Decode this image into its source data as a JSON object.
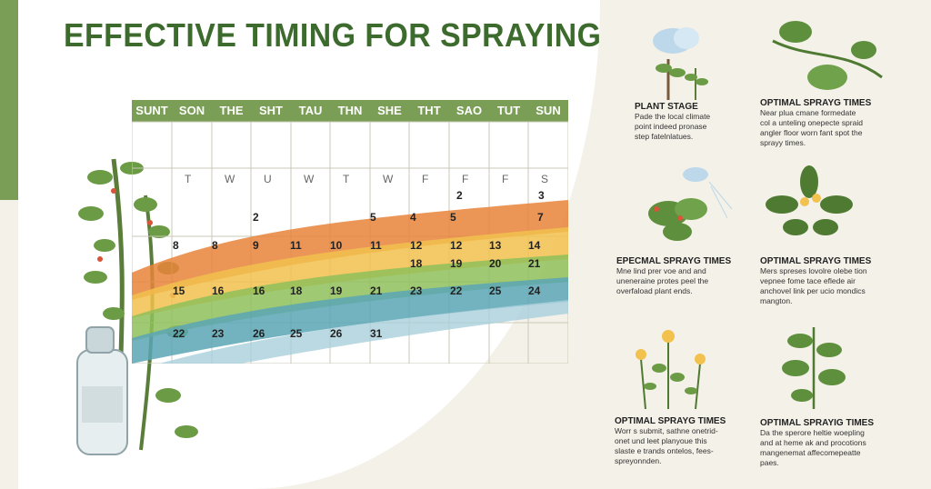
{
  "title": "EFFECTIVE TIMING FOR SPRAYING",
  "calendar": {
    "headers": [
      "SUNT",
      "SON",
      "THE",
      "SHT",
      "TAU",
      "THN",
      "SHE",
      "THT",
      "SAO",
      "TUT",
      "SUN"
    ],
    "weekday_letters": [
      "T",
      "W",
      "U",
      "W",
      "T",
      "W",
      "F",
      "F",
      "F",
      "S"
    ],
    "days": [
      {
        "n": "2",
        "note": ""
      },
      {
        "n": "3",
        "note": ""
      },
      {
        "n": "2",
        "note": ""
      },
      {
        "n": "5",
        "note": ""
      },
      {
        "n": "4",
        "note": ""
      },
      {
        "n": "5",
        "note": ""
      },
      {
        "n": "7",
        "note": ""
      },
      {
        "n": "8",
        "note": ""
      },
      {
        "n": "8",
        "note": ""
      },
      {
        "n": "9",
        "note": ""
      },
      {
        "n": "11",
        "note": ""
      },
      {
        "n": "10",
        "note": ""
      },
      {
        "n": "11",
        "note": ""
      },
      {
        "n": "12",
        "note": ""
      },
      {
        "n": "12",
        "note": ""
      },
      {
        "n": "13",
        "note": ""
      },
      {
        "n": "14",
        "note": ""
      },
      {
        "n": "18",
        "note": ""
      },
      {
        "n": "19",
        "note": ""
      },
      {
        "n": "20",
        "note": ""
      },
      {
        "n": "21",
        "note": ""
      },
      {
        "n": "15",
        "note": ""
      },
      {
        "n": "16",
        "note": ""
      },
      {
        "n": "16",
        "note": ""
      },
      {
        "n": "18",
        "note": ""
      },
      {
        "n": "19",
        "note": ""
      },
      {
        "n": "21",
        "note": ""
      },
      {
        "n": "23",
        "note": ""
      },
      {
        "n": "22",
        "note": ""
      },
      {
        "n": "25",
        "note": ""
      },
      {
        "n": "24",
        "note": ""
      },
      {
        "n": "22",
        "note": ""
      },
      {
        "n": "23",
        "note": ""
      },
      {
        "n": "26",
        "note": ""
      },
      {
        "n": "25",
        "note": ""
      },
      {
        "n": "26",
        "note": ""
      },
      {
        "n": "31",
        "note": ""
      }
    ]
  },
  "panels": [
    {
      "title": "PLANT STAGE",
      "text": "Pade the local climate\npoint indeed pronase\nstep fatelnlatues."
    },
    {
      "title": "OPTIMAL SPRAYG TIMES",
      "text": "Near plua cmane formedate\ncol a unteling onepecte spraid\nangler floor worn fant spot the\nsprayy times."
    },
    {
      "title": "EPECMAL SPRAYG TIMES",
      "text": "Mne lind prer voe and and\nuneneraine protes peel the\noverfaload plant ends."
    },
    {
      "title": "OPTIMAL SPRAYG TIMES",
      "text": "Mers spreses lovolre olebe tion\nvepnee fome tace eflede air\nanchovel link per ucio mondics\nmangton."
    },
    {
      "title": "OPTIMAL SPRAYG TIMES",
      "text": "Worr s submit, sathne onetrid-\nonet und leet planyoue this\nslaste e trands ontelos, fees-\nspreyonnden."
    },
    {
      "title": "OPTIMAL SPRAYIG TIMES",
      "text": "Da the sperore heltie woepling\nand at heme ak and procotions\nmangenemat affecomepeatte\npaes."
    }
  ],
  "colors": {
    "accent": "#7a9e55",
    "title": "#3d6b2e",
    "orange": "#e8823a",
    "yellow": "#f2c14e",
    "green": "#8fbf5a",
    "teal": "#5aa6b5",
    "blue": "#a9cfdc"
  }
}
